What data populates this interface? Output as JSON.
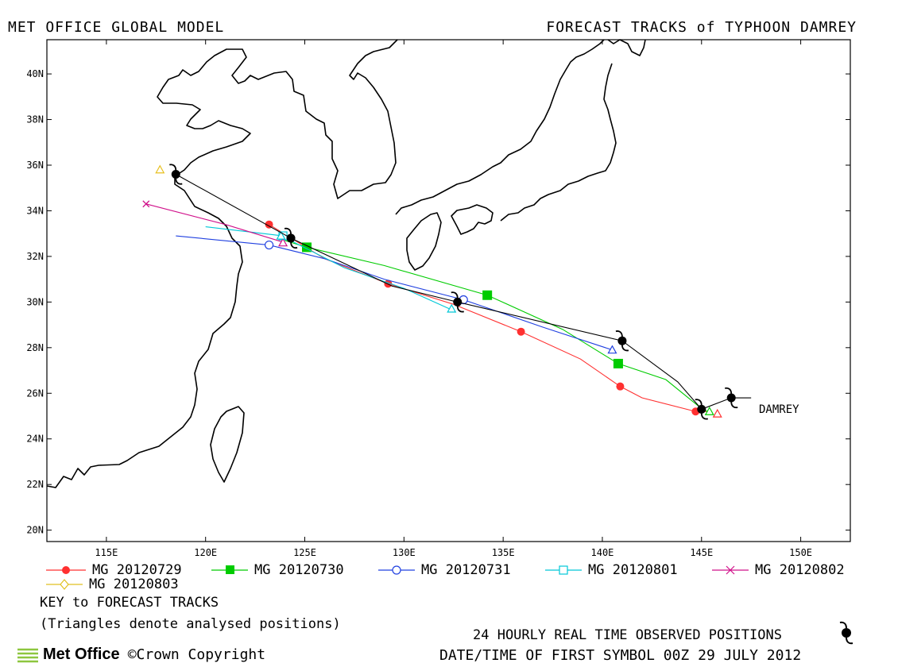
{
  "header": {
    "left_title": "MET OFFICE GLOBAL MODEL",
    "right_title": "FORECAST TRACKS of TYPHOON DAMREY"
  },
  "chart_data": {
    "type": "scatter",
    "x_range": [
      112,
      152.5
    ],
    "y_range": [
      19.5,
      41.5
    ],
    "x_ticks": [
      115,
      120,
      125,
      130,
      135,
      140,
      145,
      150
    ],
    "x_tick_labels": [
      "115E",
      "120E",
      "125E",
      "130E",
      "135E",
      "140E",
      "145E",
      "150E"
    ],
    "y_ticks": [
      20,
      22,
      24,
      26,
      28,
      30,
      32,
      34,
      36,
      38,
      40
    ],
    "y_tick_labels": [
      "20N",
      "22N",
      "24N",
      "26N",
      "28N",
      "30N",
      "32N",
      "34N",
      "36N",
      "38N",
      "40N"
    ],
    "storm_label": {
      "text": "DAMREY",
      "lon": 146.8,
      "lat": 25.2
    },
    "observed_track": {
      "color": "#000000",
      "points": [
        [
          147.5,
          25.8
        ],
        [
          146.5,
          25.8
        ],
        [
          145.0,
          25.3
        ],
        [
          143.8,
          26.5
        ],
        [
          141.0,
          28.3
        ],
        [
          132.7,
          30.0
        ],
        [
          129.4,
          30.7
        ],
        [
          124.3,
          32.8
        ],
        [
          118.5,
          35.6
        ]
      ],
      "symbols": [
        [
          146.5,
          25.8
        ],
        [
          145.0,
          25.3
        ],
        [
          141.0,
          28.3
        ],
        [
          132.7,
          30.0
        ],
        [
          124.3,
          32.8
        ],
        [
          118.5,
          35.6
        ]
      ]
    },
    "series": [
      {
        "name": "MG 20120729",
        "color": "#ff3030",
        "marker": "filled-circle",
        "points": [
          [
            145.3,
            25.2
          ],
          [
            144.7,
            25.2
          ],
          [
            142.0,
            25.8
          ],
          [
            140.9,
            26.3
          ],
          [
            138.9,
            27.5
          ],
          [
            135.9,
            28.7
          ],
          [
            132.5,
            29.9
          ],
          [
            129.2,
            30.8
          ],
          [
            126.0,
            31.9
          ],
          [
            123.2,
            33.4
          ]
        ],
        "markers": [
          [
            144.7,
            25.2
          ],
          [
            140.9,
            26.3
          ],
          [
            135.9,
            28.7
          ],
          [
            129.2,
            30.8
          ],
          [
            123.2,
            33.4
          ]
        ]
      },
      {
        "name": "MG 20120730",
        "color": "#00cc00",
        "marker": "filled-square",
        "points": [
          [
            145.3,
            25.2
          ],
          [
            144.9,
            25.4
          ],
          [
            143.2,
            26.6
          ],
          [
            140.8,
            27.3
          ],
          [
            138.0,
            28.8
          ],
          [
            134.2,
            30.3
          ],
          [
            129.0,
            31.6
          ],
          [
            125.1,
            32.4
          ],
          [
            124.0,
            32.7
          ]
        ],
        "markers": [
          [
            140.8,
            27.3
          ],
          [
            134.2,
            30.3
          ],
          [
            125.1,
            32.4
          ]
        ]
      },
      {
        "name": "MG 20120731",
        "color": "#2040e0",
        "marker": "open-circle",
        "points": [
          [
            140.5,
            27.9
          ],
          [
            137.0,
            28.9
          ],
          [
            133.0,
            30.1
          ],
          [
            129.0,
            31.0
          ],
          [
            126.0,
            31.9
          ],
          [
            123.2,
            32.5
          ],
          [
            118.5,
            32.9
          ]
        ],
        "markers": [
          [
            133.0,
            30.1
          ],
          [
            123.2,
            32.5
          ]
        ]
      },
      {
        "name": "MG 20120801",
        "color": "#00c8d8",
        "marker": "open-square",
        "points": [
          [
            132.3,
            29.7
          ],
          [
            130.0,
            30.6
          ],
          [
            127.0,
            31.5
          ],
          [
            124.5,
            32.6
          ],
          [
            123.9,
            32.9
          ],
          [
            120.0,
            33.3
          ]
        ],
        "markers": [
          [
            123.9,
            32.9
          ]
        ]
      },
      {
        "name": "MG 20120802",
        "color": "#d0108a",
        "marker": "cross",
        "points": [
          [
            124.0,
            32.6
          ],
          [
            121.0,
            33.4
          ],
          [
            117.0,
            34.3
          ]
        ],
        "markers": [
          [
            117.0,
            34.3
          ]
        ]
      },
      {
        "name": "MG 20120803",
        "color": "#e0c020",
        "marker": "diamond",
        "points": [],
        "markers": []
      }
    ],
    "analysed_triangles": [
      {
        "color": "#e8c020",
        "lon": 117.7,
        "lat": 35.8
      },
      {
        "color": "#d0108a",
        "lon": 123.9,
        "lat": 32.6
      },
      {
        "color": "#00c8d8",
        "lon": 123.8,
        "lat": 32.9
      },
      {
        "color": "#00c8d8",
        "lon": 132.4,
        "lat": 29.7
      },
      {
        "color": "#2040e0",
        "lon": 140.5,
        "lat": 27.9
      },
      {
        "color": "#ff3030",
        "lon": 145.8,
        "lat": 25.1
      },
      {
        "color": "#00cc00",
        "lon": 145.4,
        "lat": 25.2
      }
    ]
  },
  "legend": {
    "items": [
      "MG 20120729",
      "MG 20120730",
      "MG 20120731",
      "MG 20120801",
      "MG 20120802",
      "MG 20120803"
    ]
  },
  "footer": {
    "key_title": "KEY to FORECAST TRACKS",
    "key_note": "(Triangles denote analysed positions)",
    "observed_note": "24 HOURLY REAL TIME OBSERVED POSITIONS",
    "date_note": "DATE/TIME OF FIRST SYMBOL 00Z 29 JULY 2012",
    "brand": "Met Office",
    "copyright": "©Crown Copyright"
  }
}
